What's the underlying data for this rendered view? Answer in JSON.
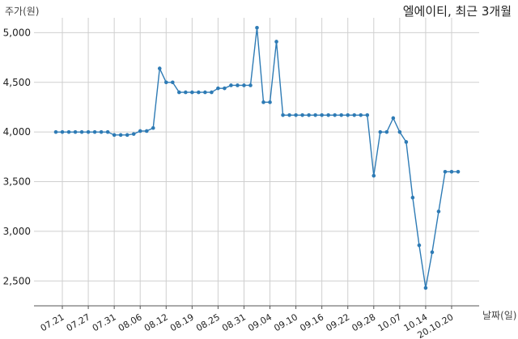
{
  "chart_data": {
    "type": "line",
    "title": "엘에이티, 최근 3개월",
    "xlabel": "날짜(일)",
    "ylabel": "주가(원)",
    "ylim": [
      2250,
      5150
    ],
    "yticks": [
      2500,
      3000,
      3500,
      4000,
      4500,
      5000
    ],
    "ytick_labels": [
      "2,500",
      "3,000",
      "3,500",
      "4,000",
      "4,500",
      "5,000"
    ],
    "xtick_labels": [
      "07.21",
      "07.27",
      "07.31",
      "08.06",
      "08.12",
      "08.19",
      "08.25",
      "08.31",
      "09.04",
      "09.10",
      "09.16",
      "09.22",
      "09.28",
      "10.07",
      "10.14",
      "20.10.20"
    ],
    "xtick_index": [
      1,
      5,
      9,
      13,
      17,
      21,
      25,
      29,
      33,
      37,
      41,
      45,
      49,
      53,
      57,
      61
    ],
    "grid": true,
    "series": [
      {
        "color": "#2e7bb5",
        "values": [
          4000,
          4000,
          4000,
          4000,
          4000,
          4000,
          4000,
          4000,
          4000,
          3970,
          3970,
          3970,
          3980,
          4010,
          4010,
          4040,
          4640,
          4500,
          4500,
          4400,
          4400,
          4400,
          4400,
          4400,
          4400,
          4440,
          4440,
          4470,
          4470,
          4470,
          4470,
          5050,
          4300,
          4300,
          4910,
          4170,
          4170,
          4170,
          4170,
          4170,
          4170,
          4170,
          4170,
          4170,
          4170,
          4170,
          4170,
          4170,
          4170,
          3560,
          4000,
          4000,
          4140,
          4000,
          3900,
          3340,
          2860,
          2430,
          2790,
          3200,
          3600,
          3600,
          3600
        ]
      }
    ]
  }
}
